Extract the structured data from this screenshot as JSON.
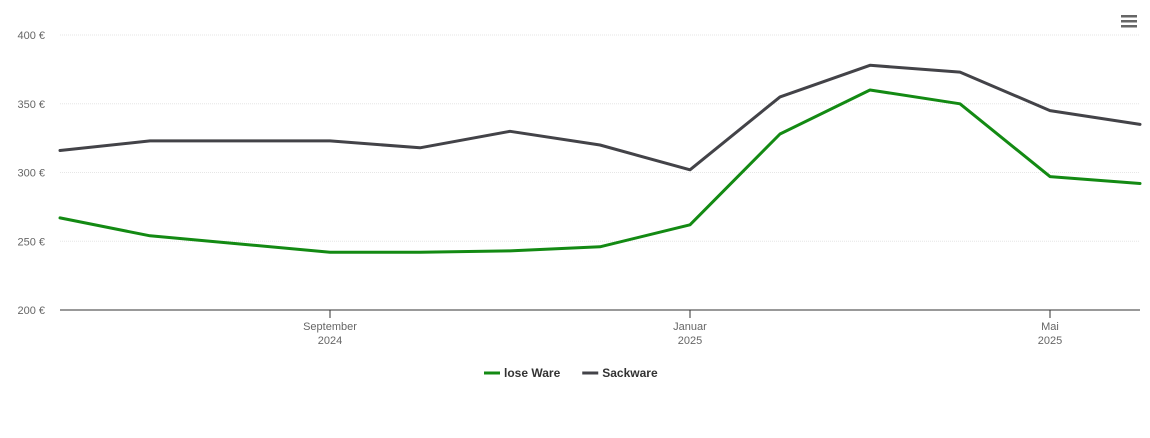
{
  "chart_data": {
    "type": "line",
    "x": [
      "2024-06",
      "2024-07",
      "2024-08",
      "2024-09",
      "2024-10",
      "2024-11",
      "2024-12",
      "2025-01",
      "2025-02",
      "2025-03",
      "2025-04",
      "2025-05",
      "2025-06"
    ],
    "series": [
      {
        "name": "lose Ware",
        "color": "#138a13",
        "values": [
          267,
          254,
          248,
          242,
          242,
          243,
          246,
          262,
          328,
          360,
          350,
          297,
          292
        ]
      },
      {
        "name": "Sackware",
        "color": "#434348",
        "values": [
          316,
          323,
          323,
          323,
          318,
          330,
          320,
          302,
          355,
          378,
          373,
          345,
          335
        ]
      }
    ],
    "xlim": [
      "2024-06",
      "2025-06"
    ],
    "xticks": [
      {
        "value": "2024-09",
        "label": [
          "September",
          "2024"
        ]
      },
      {
        "value": "2025-01",
        "label": [
          "Januar",
          "2025"
        ]
      },
      {
        "value": "2025-05",
        "label": [
          "Mai",
          "2025"
        ]
      }
    ],
    "ylim": [
      200,
      400
    ],
    "yticks": [
      {
        "value": 200,
        "label": "200 €"
      },
      {
        "value": 250,
        "label": "250 €"
      },
      {
        "value": 300,
        "label": "300 €"
      },
      {
        "value": 350,
        "label": "350 €"
      },
      {
        "value": 400,
        "label": "400 €"
      }
    ],
    "grid": true,
    "legend": "bottom"
  }
}
